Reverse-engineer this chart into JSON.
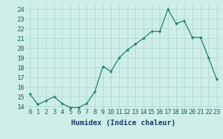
{
  "x": [
    0,
    1,
    2,
    3,
    4,
    5,
    6,
    7,
    8,
    9,
    10,
    11,
    12,
    13,
    14,
    15,
    16,
    17,
    18,
    19,
    20,
    21,
    22,
    23
  ],
  "y": [
    15.3,
    14.2,
    14.6,
    15.0,
    14.3,
    13.9,
    13.9,
    14.3,
    15.5,
    18.1,
    17.6,
    19.0,
    19.8,
    20.4,
    21.0,
    21.7,
    21.7,
    24.0,
    22.5,
    22.8,
    21.1,
    21.1,
    19.0,
    16.8
  ],
  "line_color": "#1a7a6a",
  "marker": "+",
  "marker_size": 3.5,
  "bg_color": "#ceeee8",
  "grid_color": "#aad4cc",
  "xlabel": "Humidex (Indice chaleur)",
  "ylim": [
    13.8,
    24.5
  ],
  "xlim": [
    -0.5,
    23.5
  ],
  "yticks": [
    14,
    15,
    16,
    17,
    18,
    19,
    20,
    21,
    22,
    23,
    24
  ],
  "xticks": [
    0,
    1,
    2,
    3,
    4,
    5,
    6,
    7,
    8,
    9,
    10,
    11,
    12,
    13,
    14,
    15,
    16,
    17,
    18,
    19,
    20,
    21,
    22,
    23
  ],
  "tick_label_fontsize": 6.5,
  "xlabel_fontsize": 7.5,
  "tick_color": "#1a5a50",
  "label_color": "#1a3a6a"
}
